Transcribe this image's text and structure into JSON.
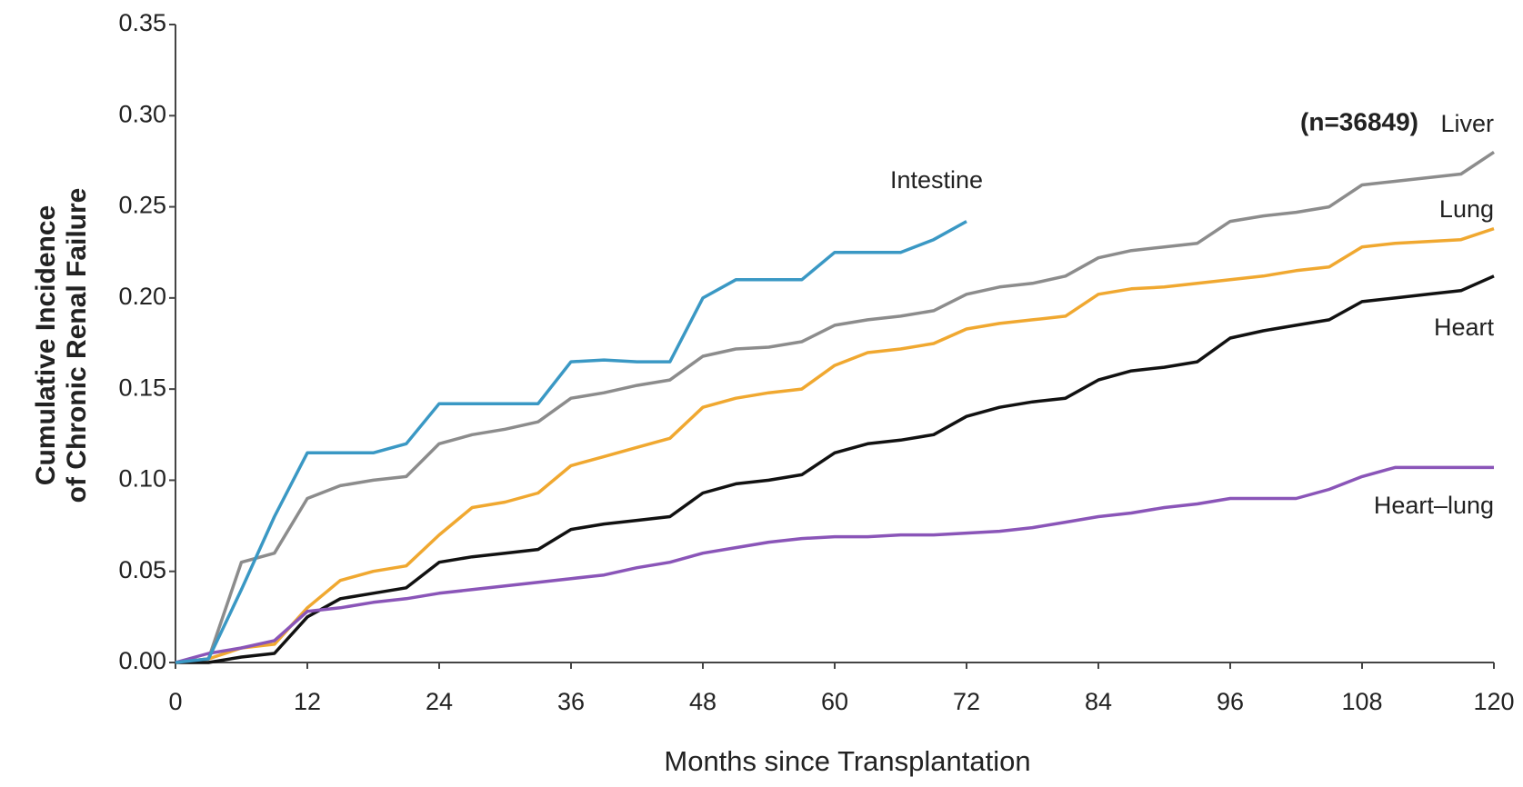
{
  "chart_data": {
    "type": "line",
    "annotation": "(n=36849)",
    "xlabel": "Months since Transplantation",
    "ylabel": [
      "Cumulative Incidence",
      "of Chronic Renal Failure"
    ],
    "x": [
      0,
      3,
      6,
      9,
      12,
      15,
      18,
      21,
      24,
      27,
      30,
      33,
      36,
      39,
      42,
      45,
      48,
      51,
      54,
      57,
      60,
      63,
      66,
      69,
      72,
      75,
      78,
      81,
      84,
      87,
      90,
      93,
      96,
      99,
      102,
      105,
      108,
      111,
      114,
      117,
      120
    ],
    "xlim": [
      0,
      120
    ],
    "xticks": [
      0,
      12,
      24,
      36,
      48,
      60,
      72,
      84,
      96,
      108,
      120
    ],
    "ylim": [
      0,
      0.35
    ],
    "yticks": [
      {
        "value": 0,
        "label": "0.00"
      },
      0.05,
      {
        "value": 0.1,
        "label": "0.10"
      },
      0.15,
      {
        "value": 0.2,
        "label": "0.20"
      },
      0.25,
      {
        "value": 0.3,
        "label": "0.30"
      },
      0.35
    ],
    "series": [
      {
        "name": "Liver",
        "color": "#8c8c8c",
        "values": [
          0,
          0.002,
          0.055,
          0.06,
          0.09,
          0.097,
          0.1,
          0.102,
          0.12,
          0.125,
          0.128,
          0.132,
          0.145,
          0.148,
          0.152,
          0.155,
          0.168,
          0.172,
          0.173,
          0.176,
          0.185,
          0.188,
          0.19,
          0.193,
          0.202,
          0.206,
          0.208,
          0.212,
          0.222,
          0.226,
          0.228,
          0.23,
          0.242,
          0.245,
          0.247,
          0.25,
          0.262,
          0.264,
          0.266,
          0.268,
          0.28
        ]
      },
      {
        "name": "Lung",
        "color": "#f0a830",
        "values": [
          0,
          0.002,
          0.008,
          0.01,
          0.03,
          0.045,
          0.05,
          0.053,
          0.07,
          0.085,
          0.088,
          0.093,
          0.108,
          0.113,
          0.118,
          0.123,
          0.14,
          0.145,
          0.148,
          0.15,
          0.163,
          0.17,
          0.172,
          0.175,
          0.183,
          0.186,
          0.188,
          0.19,
          0.202,
          0.205,
          0.206,
          0.208,
          0.21,
          0.212,
          0.215,
          0.217,
          0.228,
          0.23,
          0.231,
          0.232,
          0.238
        ]
      },
      {
        "name": "Heart",
        "color": "#111111",
        "values": [
          0,
          0,
          0.003,
          0.005,
          0.025,
          0.035,
          0.038,
          0.041,
          0.055,
          0.058,
          0.06,
          0.062,
          0.073,
          0.076,
          0.078,
          0.08,
          0.093,
          0.098,
          0.1,
          0.103,
          0.115,
          0.12,
          0.122,
          0.125,
          0.135,
          0.14,
          0.143,
          0.145,
          0.155,
          0.16,
          0.162,
          0.165,
          0.178,
          0.182,
          0.185,
          0.188,
          0.198,
          0.2,
          0.202,
          0.204,
          0.212
        ]
      },
      {
        "name": "Heart–lung",
        "color": "#8a55b8",
        "values": [
          0,
          0.005,
          0.008,
          0.012,
          0.028,
          0.03,
          0.033,
          0.035,
          0.038,
          0.04,
          0.042,
          0.044,
          0.046,
          0.048,
          0.052,
          0.055,
          0.06,
          0.063,
          0.066,
          0.068,
          0.069,
          0.069,
          0.07,
          0.07,
          0.071,
          0.072,
          0.074,
          0.077,
          0.08,
          0.082,
          0.085,
          0.087,
          0.09,
          0.09,
          0.09,
          0.095,
          0.102,
          0.107,
          0.107,
          0.107,
          0.107
        ]
      },
      {
        "name": "Intestine",
        "color": "#3a98c4",
        "values": [
          0,
          0.002,
          0.04,
          0.08,
          0.115,
          0.115,
          0.115,
          0.12,
          0.142,
          0.142,
          0.142,
          0.142,
          0.165,
          0.166,
          0.165,
          0.165,
          0.2,
          0.21,
          0.21,
          0.21,
          0.225,
          0.225,
          0.225,
          0.232,
          0.242,
          null,
          null,
          null,
          null,
          null,
          null,
          null,
          null,
          null,
          null,
          null,
          null,
          null,
          null,
          null,
          null
        ]
      }
    ]
  }
}
